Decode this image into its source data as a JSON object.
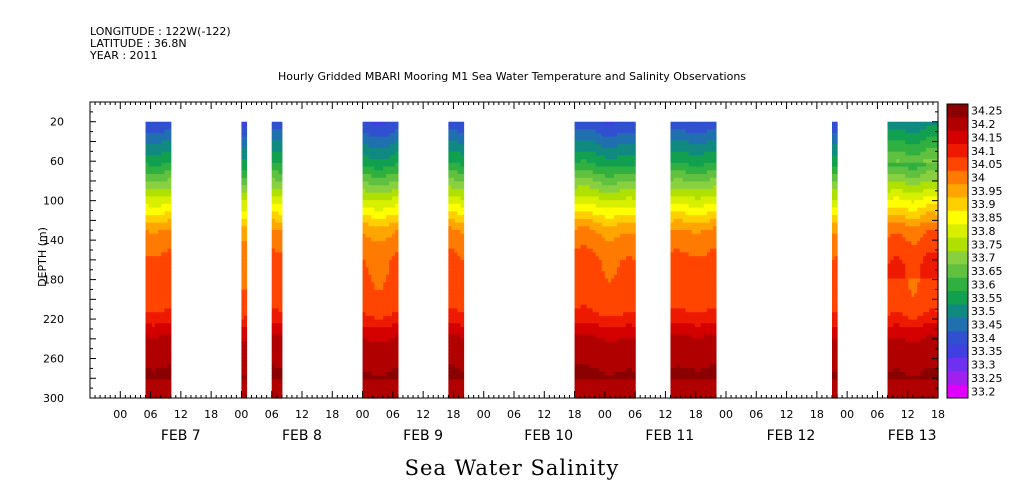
{
  "header": {
    "longitude": "LONGITUDE : 122W(-122)",
    "latitude": "LATITUDE : 36.8N",
    "year": "YEAR : 2011"
  },
  "chart_data": {
    "type": "heatmap",
    "title": "Hourly Gridded MBARI Mooring M1 Sea Water Temperature and Salinity Observations",
    "xlabel": "Sea Water Salinity",
    "ylabel": "DEPTH (m)",
    "x_unit": "hours since FEB 7 00:00 (2011)",
    "xlim": [
      -6,
      162
    ],
    "ylim": [
      300,
      0
    ],
    "y_ticks": [
      20,
      60,
      100,
      140,
      180,
      220,
      260,
      300
    ],
    "x_hour_ticks": [
      "00",
      "06",
      "12",
      "18",
      "00",
      "06",
      "12",
      "18",
      "00",
      "06",
      "12",
      "18",
      "00",
      "06",
      "12",
      "18",
      "00",
      "06",
      "12",
      "18",
      "00",
      "06",
      "12",
      "18",
      "00",
      "06",
      "12",
      "18"
    ],
    "day_labels": [
      "FEB 7",
      "FEB 8",
      "FEB 9",
      "FEB 10",
      "FEB 11",
      "FEB 12",
      "FEB 13"
    ],
    "data_segments": [
      {
        "start": 5,
        "end": 10
      },
      {
        "start": 24,
        "end": 25
      },
      {
        "start": 30,
        "end": 32
      },
      {
        "start": 48,
        "end": 55
      },
      {
        "start": 65,
        "end": 68
      },
      {
        "start": 90,
        "end": 102
      },
      {
        "start": 109,
        "end": 118
      },
      {
        "start": 141,
        "end": 142
      },
      {
        "start": 152,
        "end": 166
      }
    ],
    "colorbar": {
      "levels": [
        "34.25",
        "34.2",
        "34.15",
        "34.1",
        "34.05",
        "34",
        "33.95",
        "33.9",
        "33.85",
        "33.8",
        "33.75",
        "33.7",
        "33.65",
        "33.6",
        "33.55",
        "33.5",
        "33.45",
        "33.4",
        "33.35",
        "33.3",
        "33.25",
        "33.2"
      ],
      "colors": [
        "#8b0000",
        "#b00000",
        "#d40000",
        "#ee1a00",
        "#ff4500",
        "#ff7a00",
        "#ffa500",
        "#ffd000",
        "#ffff00",
        "#d8f000",
        "#b0e000",
        "#88d040",
        "#60c040",
        "#30b040",
        "#10a050",
        "#108a80",
        "#2070b0",
        "#3050d0",
        "#4040e0",
        "#7030f0",
        "#a020f0",
        "#e000ff"
      ]
    }
  }
}
